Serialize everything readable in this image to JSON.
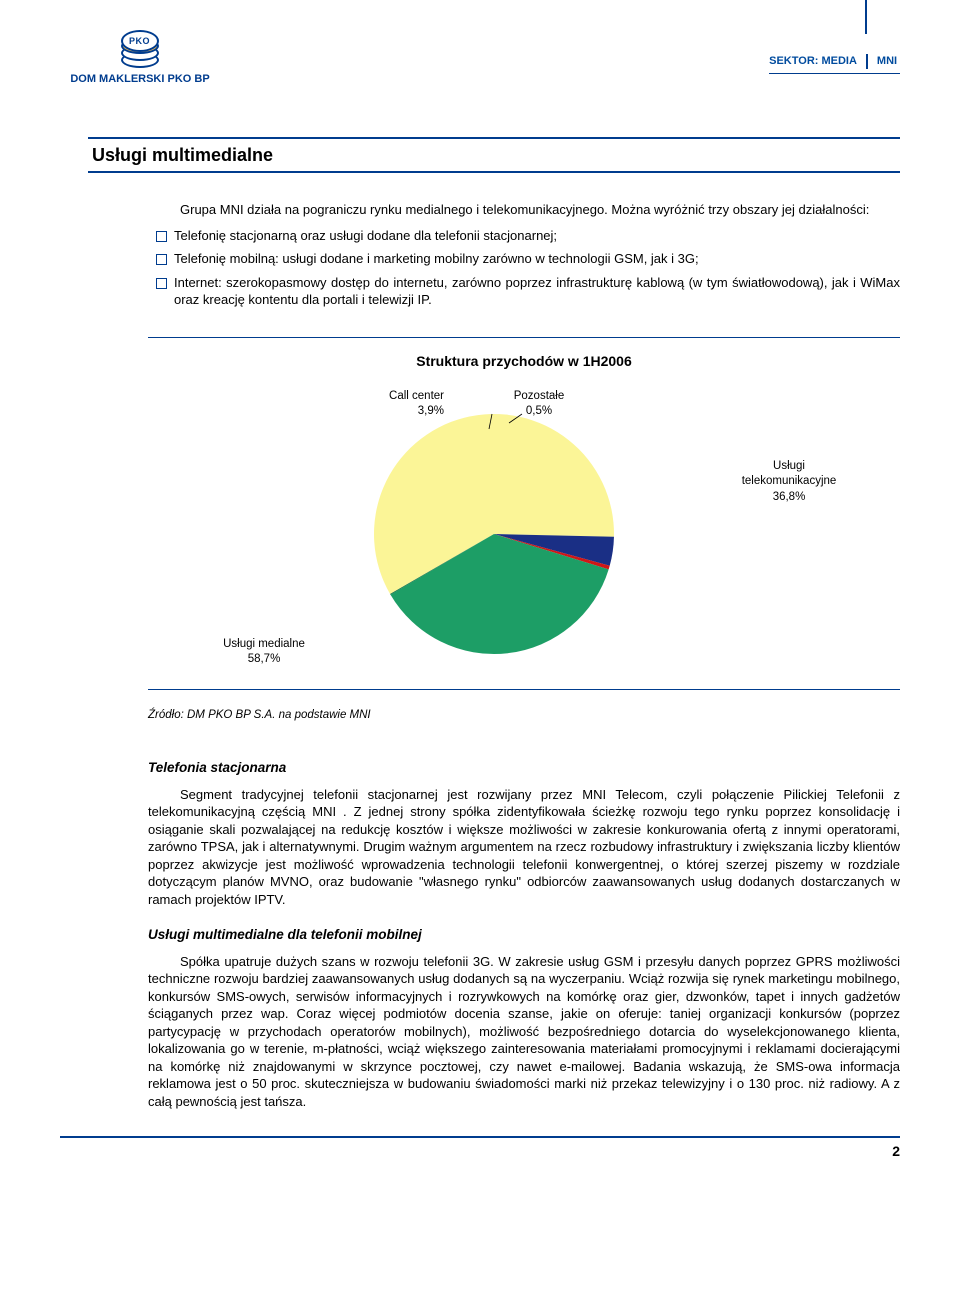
{
  "header": {
    "logo_text": "DOM MAKLERSKI PKO BP",
    "sektor_label": "SEKTOR: MEDIA",
    "sektor_code": "MNI"
  },
  "section_title": "Usługi multimedialne",
  "intro": "Grupa MNI działa na pograniczu rynku medialnego i telekomunikacyjnego. Można wyróżnić trzy obszary jej działalności:",
  "bullets": [
    "Telefonię stacjonarną oraz usługi dodane dla telefonii stacjonarnej;",
    "Telefonię mobilną: usługi dodane i marketing mobilny zarówno w technologii GSM, jak i 3G;",
    "Internet: szerokopasmowy dostęp do internetu, zarówno poprzez infrastrukturę kablową (w tym światłowodową), jak i WiMax oraz kreację kontentu dla portali i telewizji IP."
  ],
  "chart": {
    "type": "pie",
    "title": "Struktura przychodów w 1H2006",
    "slices": [
      {
        "label": "Usługi medialne",
        "pct": 58.7,
        "color": "#fbf597",
        "label_text": "Usługi medialne\n58,7%"
      },
      {
        "label": "Call center",
        "pct": 3.9,
        "color": "#1a2f85",
        "label_text": "Call center\n3,9%"
      },
      {
        "label": "Pozostałe",
        "pct": 0.5,
        "color": "#cf1717",
        "label_text": "Pozostałe\n0,5%"
      },
      {
        "label": "Usługi telekomunikacyjne",
        "pct": 36.8,
        "color": "#1d9e66",
        "label_text": "Usługi\ntelekomunikacyjne\n36,8%"
      },
      {
        "label": "_shadow",
        "pct": 0.1,
        "color": "#0b6a42",
        "label_text": ""
      }
    ],
    "start_angle_deg": 150,
    "radius": 120,
    "background": "#ffffff"
  },
  "source": "Źródło: DM PKO BP S.A. na podstawie MNI",
  "sub1_title": "Telefonia stacjonarna",
  "sub1_body": "Segment tradycyjnej telefonii stacjonarnej jest rozwijany przez MNI Telecom, czyli połączenie Pilickiej Telefonii z telekomunikacyjną częścią MNI . Z jednej strony spółka zidentyfikowała ścieżkę rozwoju tego rynku poprzez konsolidację i osiąganie skali pozwalającej na redukcję kosztów i większe możliwości w zakresie konkurowania ofertą z innymi operatorami, zarówno TPSA, jak i alternatywnymi. Drugim ważnym argumentem na rzecz rozbudowy infrastruktury i zwiększania liczby klientów poprzez akwizycje jest możliwość wprowadzenia technologii telefonii konwergentnej, o której szerzej piszemy w rozdziale dotyczącym planów MVNO, oraz budowanie \"własnego rynku\" odbiorców zaawansowanych usług dodanych dostarczanych w ramach projektów IPTV.",
  "sub2_title": "Usługi multimedialne dla telefonii mobilnej",
  "sub2_body": "Spółka upatruje dużych szans w rozwoju telefonii 3G. W zakresie usług GSM i przesyłu danych poprzez GPRS możliwości techniczne rozwoju bardziej zaawansowanych usług dodanych są na wyczerpaniu. Wciąż rozwija się rynek marketingu mobilnego, konkursów SMS-owych, serwisów informacyjnych i rozrywkowych na komórkę oraz gier, dzwonków, tapet i innych gadżetów ściąganych przez wap. Coraz więcej podmiotów docenia szanse, jakie on oferuje: taniej organizacji konkursów (poprzez partycypację w przychodach operatorów mobilnych), możliwość bezpośredniego dotarcia do wyselekcjonowanego klienta, lokalizowania go w terenie, m-płatności, wciąż większego zainteresowania materiałami promocyjnymi i reklamami docierającymi na komórkę niż znajdowanymi w skrzynce pocztowej, czy nawet e-mailowej. Badania wskazują, że SMS-owa informacja reklamowa jest o 50 proc. skuteczniejsza w budowaniu świadomości marki niż przekaz telewizyjny i o 130 proc. niż radiowy. A z całą pewnością jest tańsza.",
  "page_number": "2"
}
